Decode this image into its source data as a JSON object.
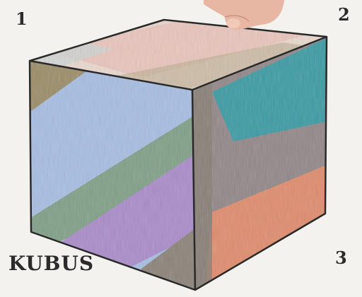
{
  "labels": {
    "corner_1": "1",
    "corner_2": "2",
    "corner_3": "3",
    "title": "KUBUS"
  },
  "colors": {
    "paper": "#f3f2ee",
    "outline": "#2a2a2a",
    "top_face": "#e8c9c0",
    "front_blue": "#9fb8df",
    "front_green": "#7f9f86",
    "front_purple": "#a98bc9",
    "side_teal": "#3a9aa3",
    "side_gray": "#8e8488",
    "side_orange": "#e08b6c",
    "olive": "#9a8c67"
  },
  "icons": {
    "hand": "hand-icon",
    "cube": "cube-drawing"
  }
}
